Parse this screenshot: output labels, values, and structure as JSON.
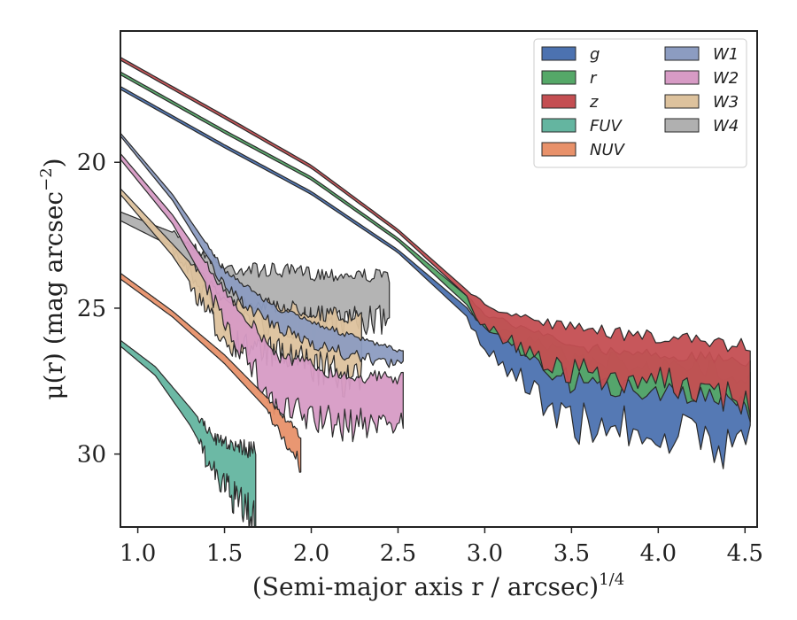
{
  "chart_data": {
    "type": "area",
    "xlabel": "(Semi-major axis r / arcsec)",
    "xlabel_exponent": "1/4",
    "ylabel": "μ(r) (mag arcsec",
    "ylabel_exponent": "−2",
    "ylabel_close": ")",
    "xlim": [
      0.9,
      4.57
    ],
    "ylim": [
      32.5,
      15.5
    ],
    "y_inverted": true,
    "x_ticks": [
      1.0,
      1.5,
      2.0,
      2.5,
      3.0,
      3.5,
      4.0,
      4.5
    ],
    "x_tick_labels": [
      "1.0",
      "1.5",
      "2.0",
      "2.5",
      "3.0",
      "3.5",
      "4.0",
      "4.5"
    ],
    "y_ticks": [
      20,
      25,
      30
    ],
    "y_tick_labels": [
      "20",
      "25",
      "30"
    ],
    "grid": false,
    "legend_position": "top-right",
    "legend_columns": 2,
    "series": [
      {
        "name": "g",
        "color": "#4c72b0",
        "x_start": 0.9,
        "x_end": 4.53,
        "noise_from": 2.9,
        "points": [
          [
            0.9,
            17.4
          ],
          [
            1.5,
            19.4
          ],
          [
            2.0,
            21.0
          ],
          [
            2.5,
            23.0
          ],
          [
            2.9,
            25.0
          ],
          [
            3.0,
            25.6
          ],
          [
            3.5,
            26.7
          ],
          [
            4.0,
            27.0
          ],
          [
            4.53,
            27.2
          ]
        ],
        "lower": [
          [
            0.9,
            17.5
          ],
          [
            1.5,
            19.5
          ],
          [
            2.0,
            21.1
          ],
          [
            2.5,
            23.1
          ],
          [
            2.9,
            25.3
          ],
          [
            3.0,
            26.3
          ],
          [
            3.5,
            28.6
          ],
          [
            4.0,
            28.9
          ],
          [
            4.53,
            29.5
          ]
        ]
      },
      {
        "name": "r",
        "color": "#55a868",
        "x_start": 0.9,
        "x_end": 4.53,
        "noise_from": 2.9,
        "points": [
          [
            0.9,
            16.9
          ],
          [
            1.5,
            18.9
          ],
          [
            2.0,
            20.5
          ],
          [
            2.5,
            22.6
          ],
          [
            2.9,
            24.6
          ],
          [
            3.0,
            25.2
          ],
          [
            3.5,
            26.3
          ],
          [
            4.0,
            26.6
          ],
          [
            4.53,
            26.8
          ]
        ],
        "lower": [
          [
            0.9,
            17.0
          ],
          [
            1.5,
            19.0
          ],
          [
            2.0,
            20.6
          ],
          [
            2.5,
            22.7
          ],
          [
            2.9,
            24.9
          ],
          [
            3.0,
            25.6
          ],
          [
            3.5,
            27.4
          ],
          [
            4.0,
            27.6
          ],
          [
            4.53,
            28.2
          ]
        ]
      },
      {
        "name": "z",
        "color": "#c44e52",
        "x_start": 0.9,
        "x_end": 4.53,
        "noise_from": 2.9,
        "points": [
          [
            0.9,
            16.4
          ],
          [
            1.5,
            18.4
          ],
          [
            2.0,
            20.1
          ],
          [
            2.5,
            22.3
          ],
          [
            2.9,
            24.4
          ],
          [
            3.0,
            24.9
          ],
          [
            3.5,
            25.7
          ],
          [
            4.0,
            26.0
          ],
          [
            4.53,
            26.3
          ]
        ],
        "lower": [
          [
            0.9,
            16.5
          ],
          [
            1.5,
            18.5
          ],
          [
            2.0,
            20.2
          ],
          [
            2.5,
            22.4
          ],
          [
            2.9,
            24.6
          ],
          [
            3.0,
            25.6
          ],
          [
            3.5,
            27.0
          ],
          [
            4.0,
            27.3
          ],
          [
            4.53,
            27.9
          ]
        ]
      },
      {
        "name": "FUV",
        "color": "#64b5a0",
        "x_start": 0.9,
        "x_end": 1.68,
        "noise_from": 1.35,
        "points": [
          [
            0.9,
            26.1
          ],
          [
            1.1,
            27.0
          ],
          [
            1.3,
            28.4
          ],
          [
            1.45,
            29.5
          ],
          [
            1.68,
            29.9
          ]
        ],
        "lower": [
          [
            0.9,
            26.3
          ],
          [
            1.1,
            27.3
          ],
          [
            1.3,
            29.0
          ],
          [
            1.45,
            30.6
          ],
          [
            1.68,
            32.0
          ]
        ]
      },
      {
        "name": "NUV",
        "color": "#e8916a",
        "x_start": 0.9,
        "x_end": 1.94,
        "noise_from": 1.75,
        "points": [
          [
            0.9,
            23.8
          ],
          [
            1.2,
            25.1
          ],
          [
            1.5,
            26.6
          ],
          [
            1.75,
            28.1
          ],
          [
            1.94,
            29.4
          ]
        ],
        "lower": [
          [
            0.9,
            24.0
          ],
          [
            1.2,
            25.3
          ],
          [
            1.5,
            26.9
          ],
          [
            1.75,
            28.5
          ],
          [
            1.94,
            30.3
          ]
        ]
      },
      {
        "name": "W1",
        "color": "#8c9cc1",
        "x_start": 0.9,
        "x_end": 2.53,
        "noise_from": 1.4,
        "points": [
          [
            0.9,
            19.0
          ],
          [
            1.2,
            21.1
          ],
          [
            1.5,
            23.7
          ],
          [
            1.8,
            25.0
          ],
          [
            2.2,
            25.9
          ],
          [
            2.53,
            26.5
          ]
        ],
        "lower": [
          [
            0.9,
            19.1
          ],
          [
            1.2,
            21.3
          ],
          [
            1.5,
            24.2
          ],
          [
            1.8,
            25.6
          ],
          [
            2.2,
            26.5
          ],
          [
            2.53,
            26.9
          ]
        ]
      },
      {
        "name": "W2",
        "color": "#d79bc5",
        "x_start": 0.9,
        "x_end": 2.53,
        "noise_from": 1.4,
        "points": [
          [
            0.9,
            19.7
          ],
          [
            1.2,
            21.8
          ],
          [
            1.5,
            24.4
          ],
          [
            1.8,
            26.6
          ],
          [
            2.2,
            27.3
          ],
          [
            2.53,
            27.4
          ]
        ],
        "lower": [
          [
            0.9,
            19.9
          ],
          [
            1.2,
            22.1
          ],
          [
            1.5,
            25.3
          ],
          [
            1.8,
            28.2
          ],
          [
            2.2,
            28.8
          ],
          [
            2.53,
            28.6
          ]
        ]
      },
      {
        "name": "W3",
        "color": "#ddc29d",
        "x_start": 0.9,
        "x_end": 2.29,
        "noise_from": 1.3,
        "points": [
          [
            0.9,
            20.9
          ],
          [
            1.2,
            22.8
          ],
          [
            1.5,
            24.7
          ],
          [
            1.9,
            25.0
          ],
          [
            2.29,
            25.4
          ]
        ],
        "lower": [
          [
            0.9,
            21.1
          ],
          [
            1.2,
            23.2
          ],
          [
            1.5,
            25.9
          ],
          [
            1.9,
            26.5
          ],
          [
            2.29,
            27.3
          ]
        ]
      },
      {
        "name": "W4",
        "color": "#b0b0b0",
        "x_start": 0.9,
        "x_end": 2.45,
        "noise_from": 1.2,
        "points": [
          [
            0.9,
            21.7
          ],
          [
            1.2,
            22.4
          ],
          [
            1.5,
            23.6
          ],
          [
            2.0,
            23.8
          ],
          [
            2.45,
            23.9
          ]
        ],
        "lower": [
          [
            0.9,
            22.0
          ],
          [
            1.2,
            22.9
          ],
          [
            1.5,
            25.1
          ],
          [
            2.0,
            25.3
          ],
          [
            2.45,
            25.2
          ]
        ]
      }
    ]
  }
}
